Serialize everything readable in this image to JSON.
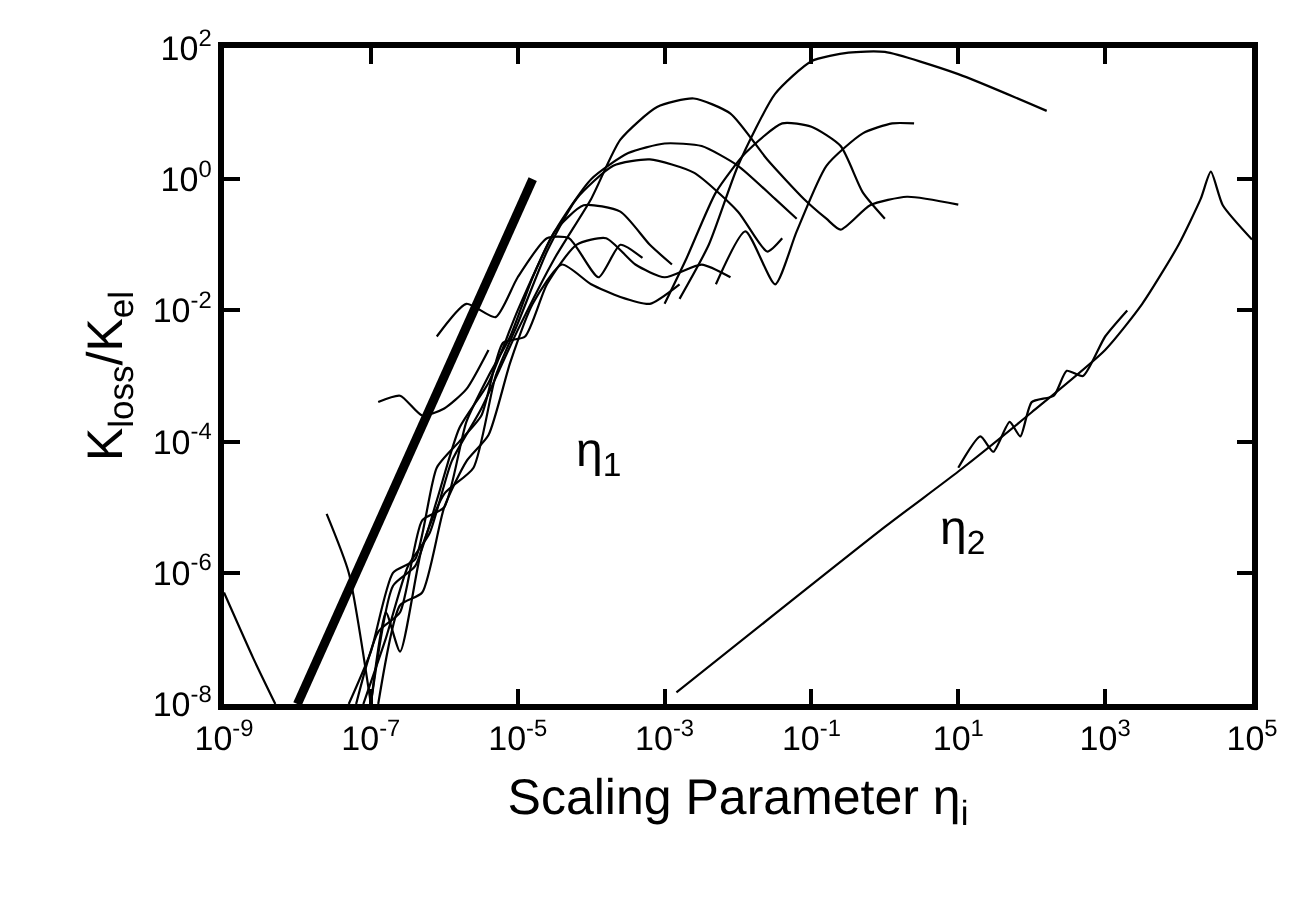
{
  "chart_data": {
    "type": "line",
    "xlabel": "Scaling Parameter η$_{i}$",
    "ylabel": "K$_{loss}$/K$_{el}$",
    "log": "xy",
    "marker": "none",
    "line_style": "solid",
    "xlim": [
      1e-09,
      100000.0
    ],
    "ylim": [
      1e-08,
      100
    ],
    "xticks": [
      {
        "value": 1e-09,
        "label": "10$^{-9}$"
      },
      {
        "value": 1e-07,
        "label": "10$^{-7}$"
      },
      {
        "value": 1e-05,
        "label": "10$^{-5}$"
      },
      {
        "value": 0.001,
        "label": "10$^{-3}$"
      },
      {
        "value": 0.1,
        "label": "10$^{-1}$"
      },
      {
        "value": 10,
        "label": "10$^{1}$"
      },
      {
        "value": 1000,
        "label": "10$^{3}$"
      },
      {
        "value": 100000,
        "label": "10$^{5}$"
      }
    ],
    "yticks": [
      {
        "value": 1e-08,
        "label": "10$^{-8}$"
      },
      {
        "value": 1e-06,
        "label": "10$^{-6}$"
      },
      {
        "value": 0.0001,
        "label": "10$^{-4}$"
      },
      {
        "value": 0.01,
        "label": "10$^{-2}$"
      },
      {
        "value": 1,
        "label": "10$^{0}$"
      },
      {
        "value": 100,
        "label": "10$^{2}$"
      }
    ],
    "annotations": [
      "η$_{1}$",
      "η$_{2}$"
    ],
    "series": [
      {
        "color": "#000000",
        "x": [
          1e-08,
          1.6e-05
        ],
        "values": [
          1e-08,
          1
        ]
      },
      {
        "color": "#000000",
        "x": [
          1e-09,
          2.5e-09,
          5e-09
        ],
        "values": [
          5e-07,
          5e-08,
          1e-08
        ]
      },
      {
        "color": "#000000",
        "x": [
          2.5e-08,
          5e-08,
          1e-07
        ],
        "values": [
          7.9e-06,
          1e-06,
          1e-08
        ]
      },
      {
        "color": "#000000",
        "x": [
          6.3e-08,
          1.26e-07,
          2.5e-07,
          5e-07,
          1e-06,
          2e-06,
          4e-06,
          7.9e-06,
          1.6e-05,
          3.2e-05,
          7.9e-05,
          0.00025,
          0.00063,
          0.00126
        ],
        "values": [
          1e-08,
          1.26e-07,
          2.5e-07,
          6.3e-06,
          1e-05,
          0.0002,
          0.001,
          0.004,
          0.032,
          0.16,
          0.4,
          0.32,
          0.1,
          0.05
        ]
      },
      {
        "color": "#000000",
        "x": [
          1e-07,
          1.6e-07,
          2.5e-07,
          5e-07,
          1e-06,
          2.5e-06,
          5e-06,
          1e-05,
          2.5e-05,
          6.3e-05,
          0.0002,
          0.00063,
          0.0025,
          0.01,
          0.025,
          0.04
        ],
        "values": [
          1e-08,
          2.5e-07,
          6.3e-08,
          2.5e-06,
          1.6e-05,
          4e-05,
          0.001,
          0.0063,
          0.079,
          0.5,
          1.6,
          2,
          1.26,
          0.32,
          0.079,
          0.126
        ]
      },
      {
        "color": "#000000",
        "x": [
          5e-08,
          1e-07,
          2e-07,
          4e-07,
          7.9e-07,
          1.6e-06,
          3.2e-06,
          6.3e-06,
          1.26e-05,
          2.5e-05,
          6.3e-05,
          0.00016,
          0.0004,
          0.001,
          0.0032,
          0.0079
        ],
        "values": [
          1e-08,
          6.3e-08,
          1e-06,
          1.6e-06,
          4e-05,
          0.0001,
          0.00025,
          0.0032,
          0.004,
          0.025,
          0.1,
          0.126,
          0.05,
          0.032,
          0.05,
          0.032
        ]
      },
      {
        "color": "#000000",
        "x": [
          1.26e-07,
          2.5e-07,
          5e-07,
          1e-06,
          2e-06,
          4e-06,
          7.9e-06,
          1.6e-05,
          4e-05,
          0.0001,
          0.00025,
          0.00063,
          0.0016
        ],
        "values": [
          1e-08,
          3.2e-07,
          5e-07,
          1e-05,
          5e-05,
          0.000126,
          0.0016,
          0.0126,
          0.05,
          0.025,
          0.016,
          0.0126,
          0.025
        ]
      },
      {
        "color": "#000000",
        "x": [
          7.9e-08,
          1.6e-07,
          3.2e-07,
          6.3e-07,
          1.26e-06,
          3.2e-06,
          1e-05,
          3.2e-05,
          0.0001,
          0.00025,
          0.00079,
          0.0025,
          0.0079,
          0.025,
          0.079,
          0.16,
          0.25,
          0.63,
          2,
          10
        ],
        "values": [
          1e-08,
          1e-07,
          1.26e-06,
          4e-06,
          5e-05,
          0.00032,
          0.005,
          0.063,
          0.5,
          4,
          12.6,
          17,
          10,
          2,
          0.5,
          0.25,
          0.17,
          0.4,
          0.54,
          0.41
        ]
      },
      {
        "color": "#000000",
        "x": [
          1e-07,
          2e-07,
          4e-07,
          7.9e-07,
          1.6e-06,
          4e-06,
          1e-05,
          3.2e-05,
          0.0001,
          0.00032,
          0.001,
          0.0032,
          0.01,
          0.032,
          0.063
        ],
        "values": [
          1e-08,
          6.3e-07,
          1.26e-06,
          1.26e-05,
          0.00016,
          0.00079,
          0.01,
          0.16,
          1,
          2.5,
          3.5,
          3.2,
          1.6,
          0.5,
          0.25
        ]
      },
      {
        "color": "#000000",
        "x": [
          0.001,
          0.002,
          0.005,
          0.0126,
          0.04,
          0.1,
          0.25,
          0.5,
          1
        ],
        "values": [
          0.0126,
          0.063,
          0.63,
          2.5,
          7.1,
          6.3,
          3.2,
          0.63,
          0.25
        ]
      },
      {
        "color": "#000000",
        "x": [
          0.005,
          0.0126,
          0.032,
          0.063,
          0.16,
          0.5,
          1.26,
          2.5
        ],
        "values": [
          0.025,
          0.16,
          0.025,
          0.16,
          1.6,
          5,
          7.1,
          7.1
        ]
      },
      {
        "color": "#000000",
        "x": [
          0.0016,
          0.004,
          0.01,
          0.032,
          0.1,
          0.32,
          1,
          10,
          160
        ],
        "values": [
          0.015,
          0.1,
          1.6,
          20,
          63,
          85,
          87,
          40,
          11
        ]
      },
      {
        "color": "#000000",
        "x": [
          1.26e-07,
          2.5e-07,
          5e-07,
          1e-06,
          2e-06,
          4e-06
        ],
        "values": [
          0.0004,
          0.0005,
          0.00025,
          0.00032,
          0.00063,
          0.0025
        ]
      },
      {
        "color": "#000000",
        "x": [
          7.9e-07,
          2e-06,
          5e-06,
          1e-05,
          2.5e-05,
          5e-05,
          0.000126,
          0.00025,
          0.0005
        ],
        "values": [
          0.004,
          0.0126,
          0.0079,
          0.032,
          0.126,
          0.126,
          0.032,
          0.1,
          0.063
        ]
      },
      {
        "color": "#000000",
        "x": [
          0.00145,
          1,
          10,
          100,
          1000,
          3200,
          10000,
          20000,
          27500,
          40000,
          100000
        ],
        "values": [
          1.5e-08,
          5e-06,
          3.5e-05,
          0.00028,
          0.0025,
          0.0126,
          0.1,
          0.5,
          1.3,
          0.4,
          0.12
        ]
      },
      {
        "color": "#000000",
        "x": [
          10,
          20,
          30,
          50,
          70,
          100,
          200,
          300,
          500,
          1000,
          2000
        ],
        "values": [
          4e-05,
          0.00012,
          7e-05,
          0.0002,
          0.00012,
          0.0004,
          0.0005,
          0.0012,
          0.001,
          0.004,
          0.01
        ]
      }
    ]
  }
}
